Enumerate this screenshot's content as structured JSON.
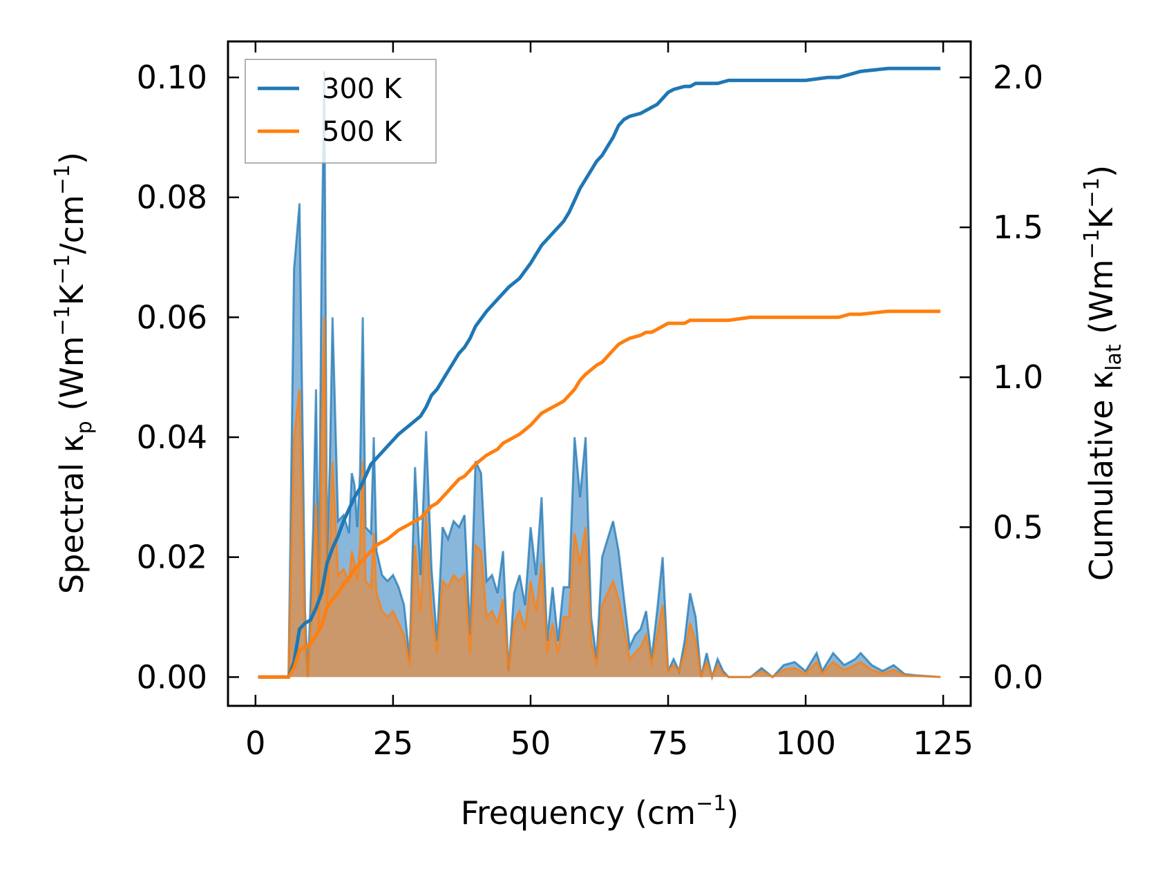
{
  "chart_data": {
    "type": "area",
    "title": "",
    "xlabel": "Frequency (cm",
    "xlabel_sup": "−1",
    "xlabel_end": ")",
    "ylabel_left": {
      "t1": "Spectral κ",
      "sub1": "p",
      "t2": " (Wm",
      "sup1": "−1",
      "t3": "K",
      "sup2": "−1",
      "t4": "/cm",
      "sup3": "−1",
      "t5": ")"
    },
    "ylabel_right": {
      "t1": "Cumulative κ",
      "sub1": "lat",
      "t2": " (Wm",
      "sup1": "−1",
      "t3": "K",
      "sup2": "−1",
      "t4": ")"
    },
    "xlim": [
      -5,
      130
    ],
    "ylim_left": [
      -0.0048,
      0.106
    ],
    "ylim_right": [
      -0.096,
      2.12
    ],
    "xticks": [
      0,
      25,
      50,
      75,
      100,
      125
    ],
    "xtick_labels": [
      "0",
      "25",
      "50",
      "75",
      "100",
      "125"
    ],
    "yticks_left": [
      0,
      0.02,
      0.04,
      0.06,
      0.08,
      0.1
    ],
    "ytick_labels_left": [
      "0.00",
      "0.02",
      "0.04",
      "0.06",
      "0.08",
      "0.10"
    ],
    "yticks_right": [
      0,
      0.5,
      1.0,
      1.5,
      2.0
    ],
    "ytick_labels_right": [
      "0.0",
      "0.5",
      "1.0",
      "1.5",
      "2.0"
    ],
    "legend_position": "upper-left",
    "legend": [
      "300 K",
      "500 K"
    ],
    "colors": {
      "s300": "#1f77b4",
      "s500": "#ff7f0e",
      "fill300": "#4a90c8",
      "fill500": "#e8a062",
      "fill_overlap": "#c49a6c"
    },
    "spectral_300": {
      "x": [
        0.5,
        5,
        6,
        7,
        8,
        9,
        9.5,
        10.5,
        11,
        11.5,
        12,
        12.5,
        13,
        13.5,
        14,
        15,
        16,
        17,
        17.5,
        18,
        18.5,
        19,
        19.5,
        20,
        21,
        21.5,
        22,
        23,
        24,
        25,
        26,
        27,
        28,
        29,
        30,
        31,
        32,
        33,
        34,
        35,
        36,
        37,
        38,
        39,
        40,
        41,
        42,
        43,
        44,
        45,
        46,
        47,
        48,
        49,
        50,
        51,
        52,
        53,
        54,
        55,
        56,
        57,
        58,
        59,
        60,
        61,
        62,
        63,
        64,
        65,
        66,
        67,
        68,
        69,
        70,
        71,
        72,
        73,
        74,
        75,
        76,
        77,
        78,
        79,
        80,
        81,
        82,
        83,
        84,
        85,
        86,
        88,
        90,
        92,
        94,
        96,
        98,
        100,
        102,
        103,
        105,
        107,
        109,
        110,
        112,
        114,
        116,
        118,
        120,
        124.5
      ],
      "y": [
        0,
        0,
        0,
        0.068,
        0.079,
        0.011,
        0,
        0.025,
        0.048,
        0.013,
        0.068,
        0.101,
        0.02,
        0.035,
        0.06,
        0.026,
        0.027,
        0.024,
        0.034,
        0.032,
        0.025,
        0.034,
        0.06,
        0.025,
        0.024,
        0.04,
        0.021,
        0.017,
        0.016,
        0.017,
        0.015,
        0.012,
        0.003,
        0.035,
        0.017,
        0.041,
        0.018,
        0.006,
        0.025,
        0.023,
        0.026,
        0.025,
        0.027,
        0.007,
        0.036,
        0.034,
        0.016,
        0.017,
        0.014,
        0.021,
        0.001,
        0.014,
        0.017,
        0.012,
        0.025,
        0.017,
        0.03,
        0.006,
        0.015,
        0.006,
        0.015,
        0.015,
        0.04,
        0.03,
        0.04,
        0.01,
        0.003,
        0.02,
        0.023,
        0.026,
        0.021,
        0.013,
        0.005,
        0.007,
        0.008,
        0.011,
        0.003,
        0.011,
        0.02,
        0.001,
        0.003,
        0.001,
        0.006,
        0.014,
        0.01,
        0.0,
        0.004,
        0.0,
        0.003,
        0.001,
        0.0,
        0.0,
        0.0,
        0.0015,
        0.0,
        0.002,
        0.0025,
        0.001,
        0.004,
        0.001,
        0.004,
        0.002,
        0.003,
        0.004,
        0.002,
        0.001,
        0.002,
        0.0005,
        0.0003,
        0
      ]
    },
    "spectral_500": {
      "x": [
        0.5,
        5,
        6,
        7,
        8,
        9,
        9.5,
        10.5,
        11,
        11.5,
        12,
        12.5,
        13,
        13.5,
        14,
        15,
        16,
        17,
        17.5,
        18,
        18.5,
        19,
        19.5,
        20,
        21,
        21.5,
        22,
        23,
        24,
        25,
        26,
        27,
        28,
        29,
        30,
        31,
        32,
        33,
        34,
        35,
        36,
        37,
        38,
        39,
        40,
        41,
        42,
        43,
        44,
        45,
        46,
        47,
        48,
        49,
        50,
        51,
        52,
        53,
        54,
        55,
        56,
        57,
        58,
        59,
        60,
        61,
        62,
        63,
        64,
        65,
        66,
        67,
        68,
        69,
        70,
        71,
        72,
        73,
        74,
        75,
        76,
        77,
        78,
        79,
        80,
        81,
        82,
        83,
        84,
        85,
        86,
        88,
        90,
        92,
        94,
        96,
        98,
        100,
        102,
        103,
        105,
        107,
        109,
        110,
        112,
        114,
        116,
        118,
        120,
        124.5
      ],
      "y": [
        0,
        0,
        0,
        0.04,
        0.048,
        0.006,
        0,
        0.015,
        0.029,
        0.008,
        0.04,
        0.06,
        0.012,
        0.021,
        0.036,
        0.017,
        0.018,
        0.016,
        0.021,
        0.019,
        0.016,
        0.022,
        0.036,
        0.016,
        0.015,
        0.024,
        0.014,
        0.011,
        0.01,
        0.011,
        0.009,
        0.007,
        0.002,
        0.022,
        0.011,
        0.027,
        0.011,
        0.004,
        0.016,
        0.015,
        0.017,
        0.016,
        0.017,
        0.004,
        0.022,
        0.021,
        0.01,
        0.011,
        0.009,
        0.013,
        0.001,
        0.009,
        0.011,
        0.008,
        0.016,
        0.011,
        0.019,
        0.004,
        0.009,
        0.004,
        0.01,
        0.01,
        0.024,
        0.019,
        0.025,
        0.006,
        0.002,
        0.012,
        0.014,
        0.016,
        0.013,
        0.008,
        0.003,
        0.004,
        0.005,
        0.007,
        0.002,
        0.007,
        0.012,
        0.001,
        0.002,
        0.001,
        0.004,
        0.009,
        0.006,
        0.0,
        0.0025,
        0.0,
        0.002,
        0.0005,
        0.0,
        0.0,
        0.0,
        0.001,
        0.0,
        0.0012,
        0.0015,
        0.0006,
        0.0025,
        0.0006,
        0.0025,
        0.0012,
        0.002,
        0.0025,
        0.0012,
        0.0006,
        0.0012,
        0.0003,
        0.0002,
        0
      ]
    },
    "cumulative_300": {
      "x": [
        0.5,
        6,
        7,
        8,
        9,
        10,
        11,
        12,
        13,
        14,
        15,
        16,
        17,
        18,
        19,
        20,
        21,
        22,
        24,
        26,
        28,
        30,
        31,
        32,
        33,
        35,
        37,
        38,
        39,
        40,
        42,
        44,
        45,
        46,
        48,
        50,
        51,
        52,
        54,
        55,
        56,
        57,
        58,
        59,
        60,
        62,
        63,
        64,
        65,
        66,
        67,
        68,
        70,
        71,
        72,
        73,
        74,
        75,
        76,
        78,
        79,
        80,
        82,
        84,
        86,
        90,
        95,
        100,
        104,
        106,
        108,
        110,
        115,
        120,
        124.5
      ],
      "y": [
        0,
        0,
        0.05,
        0.16,
        0.18,
        0.19,
        0.23,
        0.28,
        0.38,
        0.43,
        0.47,
        0.52,
        0.56,
        0.6,
        0.63,
        0.67,
        0.71,
        0.73,
        0.77,
        0.81,
        0.84,
        0.87,
        0.9,
        0.94,
        0.96,
        1.02,
        1.08,
        1.1,
        1.13,
        1.17,
        1.22,
        1.26,
        1.28,
        1.3,
        1.33,
        1.38,
        1.41,
        1.44,
        1.48,
        1.5,
        1.52,
        1.55,
        1.59,
        1.63,
        1.66,
        1.72,
        1.74,
        1.77,
        1.8,
        1.84,
        1.86,
        1.87,
        1.88,
        1.89,
        1.9,
        1.91,
        1.93,
        1.95,
        1.96,
        1.97,
        1.97,
        1.98,
        1.98,
        1.98,
        1.99,
        1.99,
        1.99,
        1.99,
        2.0,
        2.0,
        2.01,
        2.02,
        2.03,
        2.03,
        2.03
      ]
    },
    "cumulative_500": {
      "x": [
        0.5,
        6,
        7,
        8,
        9,
        10,
        11,
        12,
        13,
        14,
        15,
        16,
        17,
        18,
        19,
        20,
        21,
        22,
        24,
        26,
        28,
        30,
        31,
        32,
        33,
        35,
        37,
        38,
        39,
        40,
        42,
        44,
        45,
        46,
        48,
        50,
        51,
        52,
        54,
        55,
        56,
        57,
        58,
        59,
        60,
        62,
        63,
        64,
        65,
        66,
        67,
        68,
        70,
        71,
        72,
        73,
        74,
        75,
        76,
        78,
        79,
        80,
        82,
        84,
        86,
        90,
        95,
        100,
        104,
        106,
        108,
        110,
        115,
        120,
        124.5
      ],
      "y": [
        0,
        0,
        0.03,
        0.09,
        0.1,
        0.11,
        0.14,
        0.17,
        0.23,
        0.26,
        0.28,
        0.31,
        0.33,
        0.36,
        0.38,
        0.4,
        0.42,
        0.44,
        0.46,
        0.49,
        0.51,
        0.53,
        0.55,
        0.57,
        0.58,
        0.62,
        0.66,
        0.67,
        0.69,
        0.71,
        0.74,
        0.76,
        0.78,
        0.79,
        0.81,
        0.84,
        0.86,
        0.88,
        0.9,
        0.91,
        0.92,
        0.94,
        0.96,
        0.99,
        1.01,
        1.04,
        1.05,
        1.07,
        1.09,
        1.11,
        1.12,
        1.13,
        1.14,
        1.15,
        1.15,
        1.16,
        1.17,
        1.18,
        1.18,
        1.18,
        1.19,
        1.19,
        1.19,
        1.19,
        1.19,
        1.2,
        1.2,
        1.2,
        1.2,
        1.2,
        1.21,
        1.21,
        1.22,
        1.22,
        1.22
      ]
    }
  }
}
